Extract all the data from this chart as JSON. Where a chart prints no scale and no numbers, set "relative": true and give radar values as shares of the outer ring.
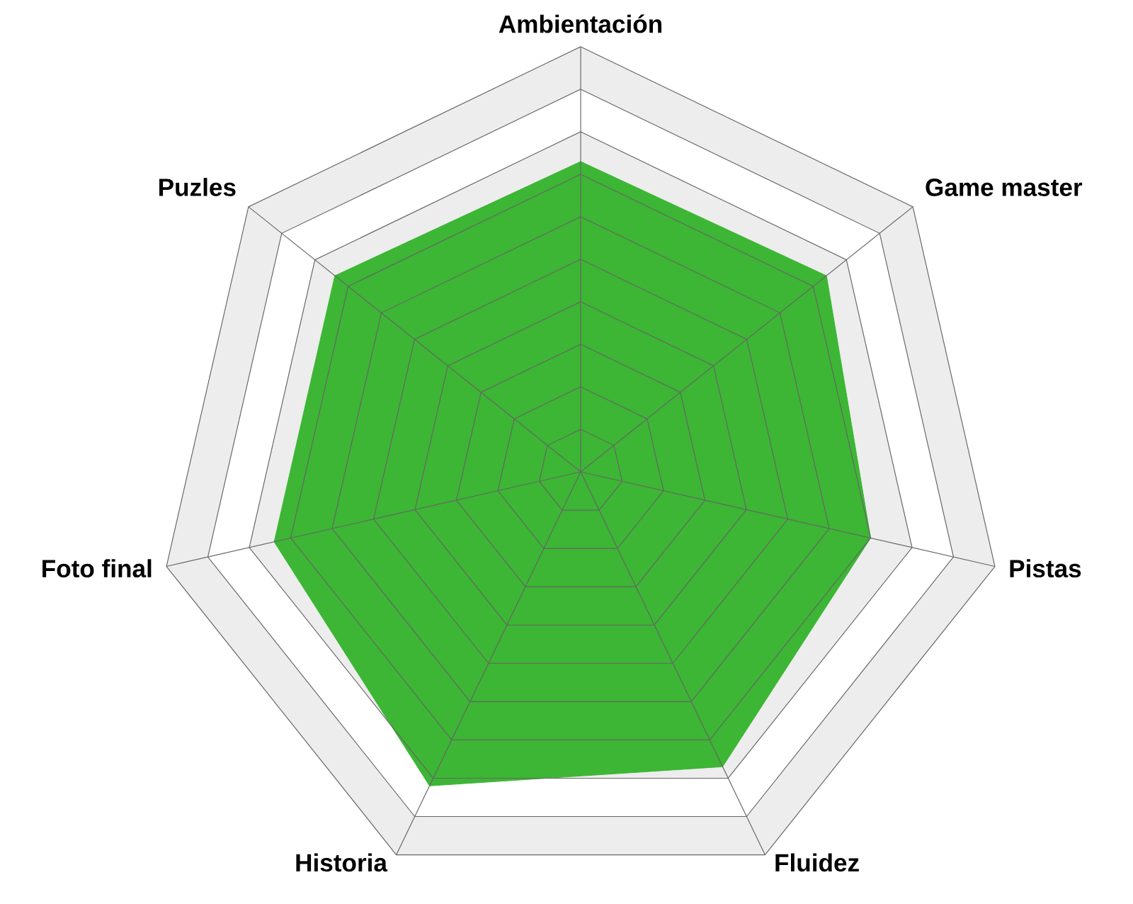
{
  "chart_data": {
    "type": "radar",
    "relative": true,
    "categories": [
      "Ambientación",
      "Game master",
      "Pistas",
      "Fluidez",
      "Historia",
      "Foto final",
      "Puzles"
    ],
    "series": [
      {
        "color": "#3cb634",
        "values": [
          0.73,
          0.74,
          0.7,
          0.77,
          0.82,
          0.74,
          0.74
        ]
      }
    ]
  }
}
